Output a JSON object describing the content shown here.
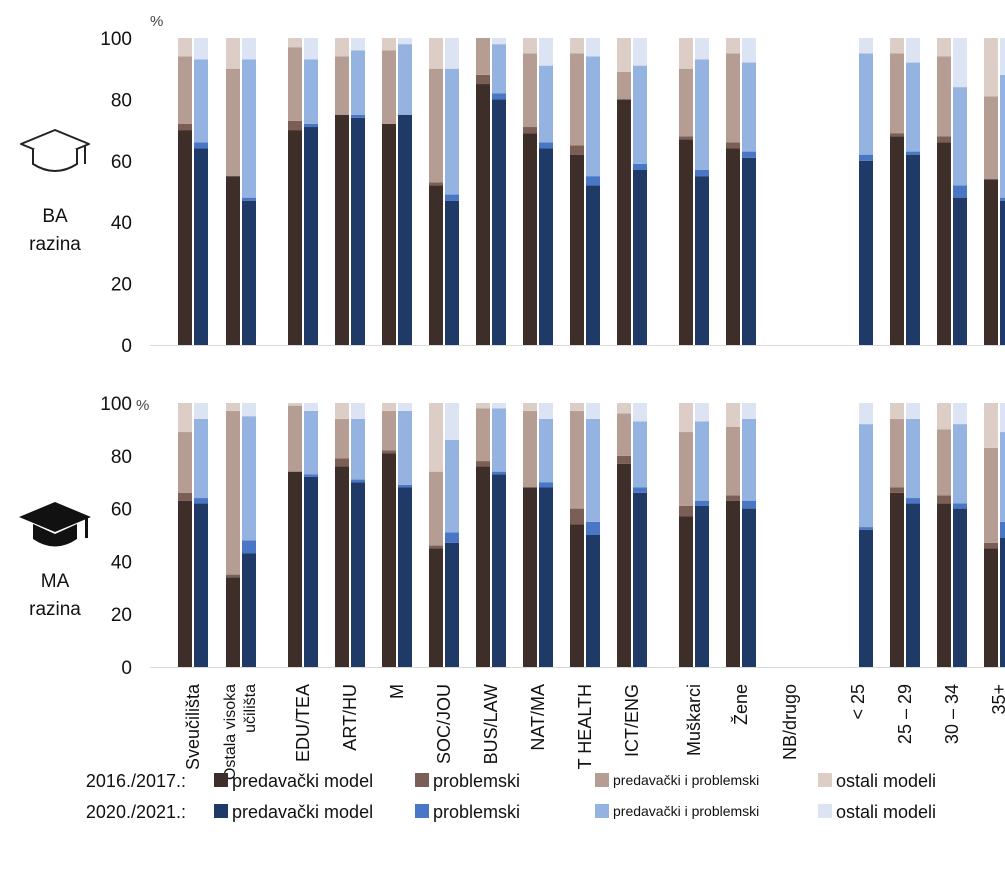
{
  "chart_data": {
    "type": "bar",
    "stacked": true,
    "percent_symbol": "%",
    "ylim": [
      0,
      100
    ],
    "yticks": [
      0,
      20,
      40,
      60,
      80,
      100
    ],
    "categories": [
      "Sveučilišta",
      "Ostala visoka učilišta",
      "EDU/TEA",
      "ART/HU",
      "M",
      "SOC/JOU",
      "BUS/LAW",
      "NAT/MA",
      "T HEALTH",
      "ICT/ENG",
      "Muškarci",
      "Žene",
      "NB/drugo",
      "< 25",
      "25 – 29",
      "30 – 34",
      "35+"
    ],
    "category_lines": [
      [
        "Sveučilišta"
      ],
      [
        "Ostala visoka",
        "učilišta"
      ],
      [
        "EDU/TEA"
      ],
      [
        "ART/HU"
      ],
      [
        "M"
      ],
      [
        "SOC/JOU"
      ],
      [
        "BUS/LAW"
      ],
      [
        "NAT/MA"
      ],
      [
        "T HEALTH"
      ],
      [
        "ICT/ENG"
      ],
      [
        "Muškarci"
      ],
      [
        "Žene"
      ],
      [
        "NB/drugo"
      ],
      [
        "< 25"
      ],
      [
        "25 – 29"
      ],
      [
        "30 – 34"
      ],
      [
        "35+"
      ]
    ],
    "legend": {
      "years": [
        "2016./2017.:",
        "2020./2021.:"
      ],
      "models": [
        "predavački model",
        "problemski",
        "predavački i problemski",
        "ostali modeli"
      ]
    },
    "colors": {
      "2016": [
        "#3e2e2a",
        "#7b5f56",
        "#b59d93",
        "#dccdc6"
      ],
      "2020": [
        "#1f3a66",
        "#4a76c6",
        "#95b3e0",
        "#dce4f3"
      ]
    },
    "panels": [
      {
        "level_label": [
          "BA",
          "razina"
        ],
        "icon": "graduation-cap-outline-icon",
        "series_2016": [
          [
            70,
            2,
            22,
            6
          ],
          [
            55,
            0,
            35,
            10
          ],
          [
            70,
            3,
            24,
            3
          ],
          [
            75,
            0,
            19,
            6
          ],
          [
            72,
            0,
            24,
            4
          ],
          [
            52,
            1,
            37,
            10
          ],
          [
            85,
            3,
            12,
            0
          ],
          [
            69,
            2,
            24,
            5
          ],
          [
            62,
            3,
            30,
            5
          ],
          [
            80,
            0,
            9,
            11
          ],
          [
            67,
            1,
            22,
            10
          ],
          [
            64,
            2,
            29,
            5
          ],
          null,
          null,
          [
            68,
            1,
            26,
            5
          ],
          [
            66,
            2,
            26,
            6
          ],
          [
            54,
            0,
            27,
            19
          ]
        ],
        "series_2020": [
          [
            64,
            2,
            27,
            7
          ],
          [
            47,
            1,
            45,
            7
          ],
          [
            71,
            1,
            21,
            7
          ],
          [
            74,
            1,
            21,
            4
          ],
          [
            75,
            0,
            23,
            2
          ],
          [
            47,
            2,
            41,
            10
          ],
          [
            80,
            2,
            16,
            2
          ],
          [
            64,
            2,
            25,
            9
          ],
          [
            52,
            3,
            39,
            6
          ],
          [
            57,
            2,
            32,
            9
          ],
          [
            55,
            2,
            36,
            7
          ],
          [
            61,
            2,
            29,
            8
          ],
          null,
          [
            60,
            2,
            33,
            5
          ],
          [
            62,
            1,
            29,
            8
          ],
          [
            48,
            4,
            32,
            16
          ],
          [
            47,
            1,
            40,
            12
          ]
        ]
      },
      {
        "level_label": [
          "MA",
          "razina"
        ],
        "icon": "graduation-cap-solid-icon",
        "series_2016": [
          [
            63,
            3,
            23,
            11
          ],
          [
            34,
            1,
            62,
            3
          ],
          [
            74,
            0,
            25,
            1
          ],
          [
            76,
            3,
            15,
            6
          ],
          [
            81,
            1,
            15,
            3
          ],
          [
            45,
            1,
            28,
            26
          ],
          [
            76,
            2,
            20,
            2
          ],
          [
            68,
            0,
            29,
            3
          ],
          [
            54,
            6,
            37,
            3
          ],
          [
            77,
            3,
            16,
            4
          ],
          [
            57,
            4,
            28,
            11
          ],
          [
            63,
            2,
            26,
            9
          ],
          null,
          null,
          [
            66,
            2,
            26,
            6
          ],
          [
            62,
            3,
            25,
            10
          ],
          [
            45,
            2,
            36,
            17
          ]
        ],
        "series_2020": [
          [
            62,
            2,
            30,
            6
          ],
          [
            43,
            5,
            47,
            5
          ],
          [
            72,
            1,
            24,
            3
          ],
          [
            70,
            1,
            23,
            6
          ],
          [
            68,
            1,
            28,
            3
          ],
          [
            47,
            4,
            35,
            14
          ],
          [
            73,
            1,
            24,
            2
          ],
          [
            68,
            2,
            24,
            6
          ],
          [
            50,
            5,
            39,
            6
          ],
          [
            66,
            2,
            25,
            7
          ],
          [
            61,
            2,
            30,
            7
          ],
          [
            60,
            3,
            31,
            6
          ],
          null,
          [
            52,
            1,
            39,
            8
          ],
          [
            62,
            2,
            30,
            6
          ],
          [
            60,
            2,
            30,
            8
          ],
          [
            49,
            6,
            34,
            11
          ]
        ]
      }
    ]
  }
}
